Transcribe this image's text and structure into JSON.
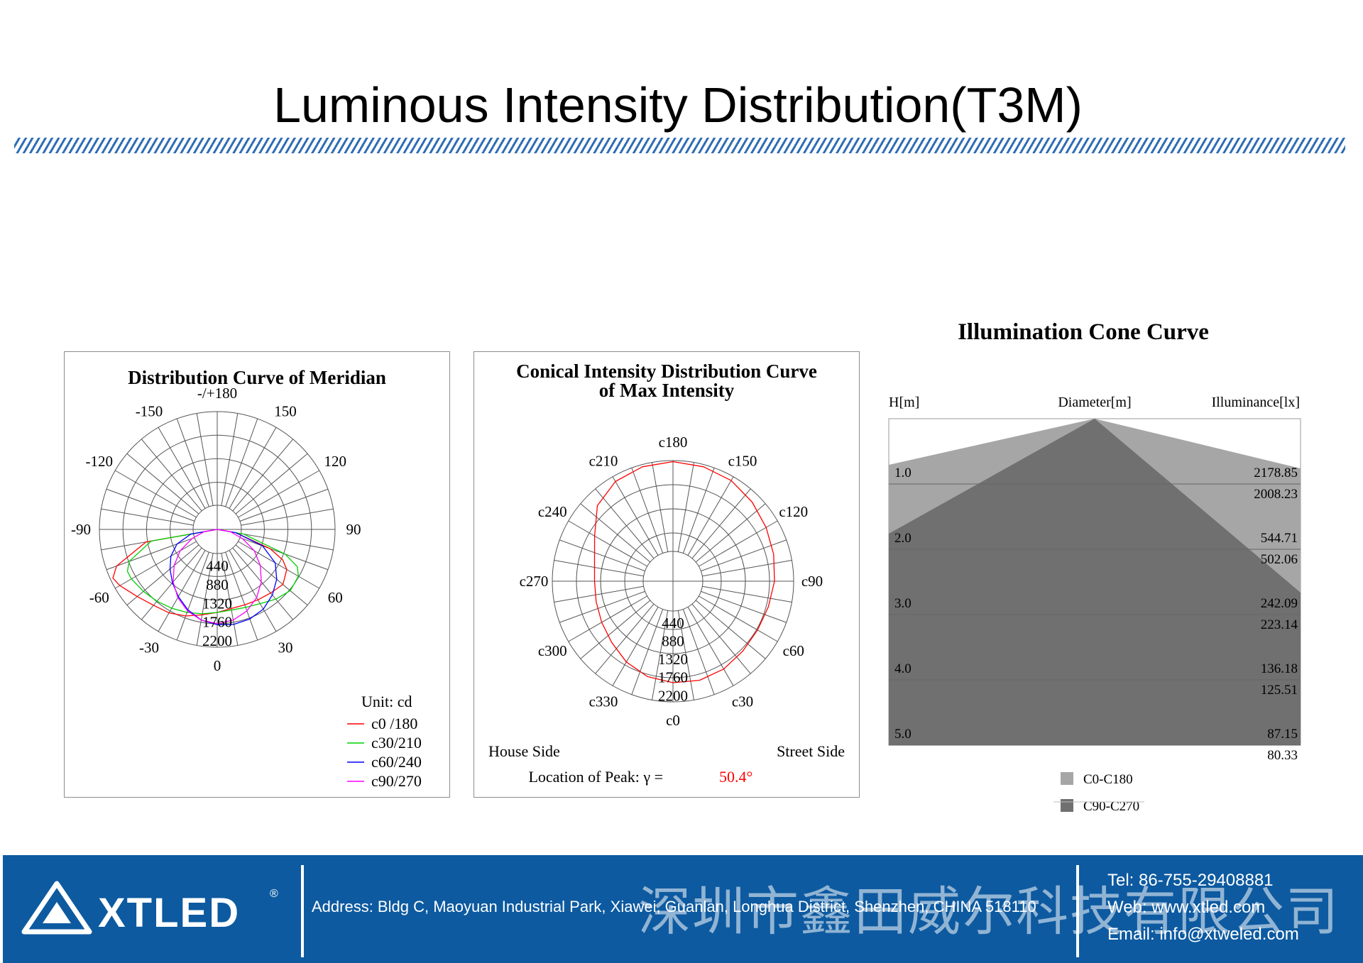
{
  "page": {
    "title": "Luminous Intensity Distribution(T3M)"
  },
  "chart_data": [
    {
      "type": "polar",
      "title": "Distribution Curve of  Meridian",
      "unit_label": "Unit: cd",
      "angle_labels": [
        "-/+180",
        "150",
        "120",
        "90",
        "60",
        "30",
        "0",
        "-30",
        "-60",
        "-90",
        "-120",
        "-150"
      ],
      "radial_ticks": [
        440,
        880,
        1320,
        1760,
        2200
      ],
      "rmax": 2200,
      "series": [
        {
          "name": "c0 /180",
          "color": "#ff0000",
          "angles": [
            -90,
            -80,
            -70,
            -65,
            -60,
            -50,
            -40,
            -30,
            -20,
            -10,
            0,
            10,
            20,
            30,
            40,
            50,
            60,
            65,
            70,
            80,
            90
          ],
          "values": [
            0,
            1350,
            2000,
            2150,
            2100,
            1950,
            1850,
            1800,
            1720,
            1620,
            1550,
            1500,
            1500,
            1520,
            1550,
            1600,
            1500,
            1350,
            1050,
            350,
            0
          ]
        },
        {
          "name": "c30/210",
          "color": "#00d000",
          "angles": [
            -90,
            -80,
            -70,
            -65,
            -60,
            -50,
            -40,
            -30,
            -20,
            -10,
            0,
            10,
            20,
            30,
            40,
            50,
            60,
            65,
            70,
            80,
            90
          ],
          "values": [
            0,
            1250,
            1750,
            1850,
            1850,
            1800,
            1750,
            1700,
            1650,
            1600,
            1550,
            1530,
            1550,
            1600,
            1700,
            1780,
            1750,
            1650,
            1350,
            500,
            0
          ]
        },
        {
          "name": "c60/240",
          "color": "#0000ff",
          "angles": [
            -90,
            -80,
            -70,
            -60,
            -50,
            -40,
            -30,
            -20,
            -10,
            0,
            10,
            20,
            30,
            40,
            50,
            60,
            70,
            80,
            90
          ],
          "values": [
            0,
            500,
            800,
            1000,
            1150,
            1300,
            1450,
            1600,
            1720,
            1780,
            1800,
            1780,
            1720,
            1600,
            1450,
            1250,
            900,
            350,
            0
          ]
        },
        {
          "name": "c90/270",
          "color": "#ff00ff",
          "angles": [
            -90,
            -80,
            -70,
            -60,
            -50,
            -40,
            -30,
            -20,
            -10,
            0,
            10,
            20,
            30,
            40,
            50,
            60,
            70,
            80,
            90
          ],
          "values": [
            0,
            250,
            500,
            800,
            1050,
            1280,
            1470,
            1620,
            1720,
            1760,
            1720,
            1620,
            1470,
            1280,
            1050,
            800,
            500,
            250,
            0
          ]
        }
      ]
    },
    {
      "type": "polar",
      "title": "Conical Intensity Distribution Curve",
      "subtitle": "of  Max Intensity",
      "angle_labels": [
        "c180",
        "c150",
        "c120",
        "c90",
        "c60",
        "c30",
        "c0",
        "c330",
        "c300",
        "c270",
        "c240",
        "c210"
      ],
      "radial_ticks": [
        440,
        880,
        1320,
        1760,
        2200
      ],
      "rmax": 2200,
      "left_label": "House Side",
      "right_label": "Street Side",
      "peak_text": "Location of  Peak:  γ  =",
      "peak_value": "50.4°",
      "series": [
        {
          "name": "c-curve",
          "color": "#ff0000",
          "angles": [
            0,
            15,
            30,
            45,
            60,
            75,
            90,
            105,
            120,
            135,
            150,
            165,
            180,
            195,
            210,
            225,
            240,
            255,
            270,
            285,
            300,
            315,
            330,
            345,
            360
          ],
          "values": [
            1850,
            1870,
            1850,
            1800,
            1780,
            1800,
            1850,
            1900,
            1960,
            2040,
            2120,
            2160,
            2180,
            2160,
            2100,
            1950,
            1650,
            1480,
            1430,
            1450,
            1500,
            1580,
            1700,
            1800,
            1850
          ]
        }
      ]
    },
    {
      "type": "cone",
      "title": "Illumination Cone Curve",
      "header_h": "H[m]",
      "header_d": "Diameter[m]",
      "header_e": "Illuminance[lx]",
      "rows": [
        {
          "h": "1.0",
          "e_c0": "2178.85",
          "e_c90": "2008.23"
        },
        {
          "h": "2.0",
          "e_c0": "544.71",
          "e_c90": "502.06"
        },
        {
          "h": "3.0",
          "e_c0": "242.09",
          "e_c90": "223.14"
        },
        {
          "h": "4.0",
          "e_c0": "136.18",
          "e_c90": "125.51"
        },
        {
          "h": "5.0",
          "e_c0": "87.15",
          "e_c90": "80.33"
        }
      ],
      "legend": [
        {
          "name": "C0-C180",
          "color": "#a6a6a6"
        },
        {
          "name": "C90-C270",
          "color": "#707070"
        }
      ]
    }
  ],
  "footer": {
    "brand": "XTLED",
    "registered": "®",
    "address": "Address: Bldg C, Maoyuan Industrial Park, Xiawei, Guanlan, Longhua District, Shenzhen, CHINA 518110",
    "chinese_name": "深圳市鑫田威尔科技有限公司",
    "tel": "Tel: 86-755-29408881",
    "web": "Web: www.xtled.com",
    "email": "Email: info@xtweled.com"
  }
}
